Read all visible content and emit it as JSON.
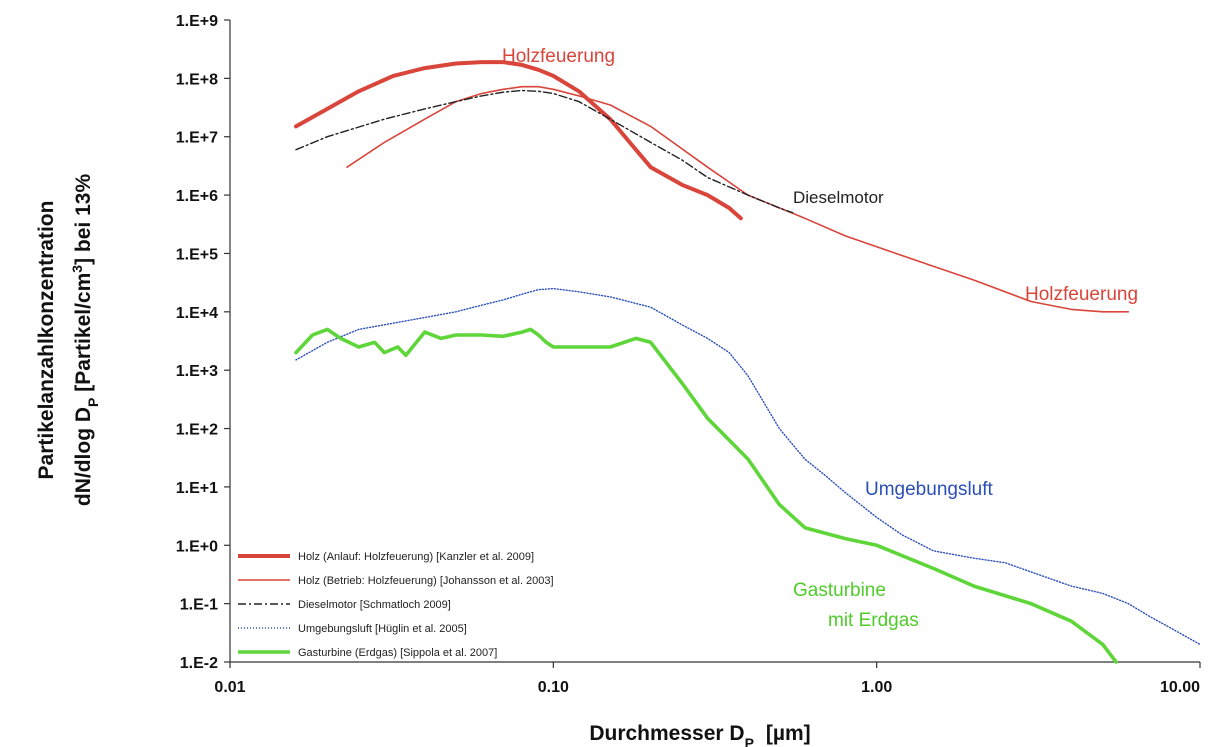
{
  "chart_data": {
    "type": "line",
    "title": "",
    "xlabel": "Durchmesser D",
    "xlabel_sub": "P",
    "xlabel_unit": "[µm]",
    "ylabel_line1": "Partikelanzahlkonzentration",
    "ylabel_line2_a": "dN/dlog D",
    "ylabel_line2_sub": "P",
    "ylabel_line2_b": " [Partikel/cm",
    "ylabel_line2_sup": "3",
    "ylabel_line2_c": "] bei 13%",
    "x_scale": "log",
    "y_scale": "log",
    "xlim": [
      0.01,
      10
    ],
    "ylim": [
      0.01,
      1000000000
    ],
    "grid": false,
    "legend_position": "bottom-left",
    "x_ticks": [
      {
        "value": 0.01,
        "label": "0.01"
      },
      {
        "value": 0.1,
        "label": "0.10"
      },
      {
        "value": 1,
        "label": "1.00"
      },
      {
        "value": 10,
        "label": "10.00"
      }
    ],
    "y_ticks": [
      {
        "value": 1000000000,
        "label": "1.E+9"
      },
      {
        "value": 100000000,
        "label": "1.E+8"
      },
      {
        "value": 10000000,
        "label": "1.E+7"
      },
      {
        "value": 1000000,
        "label": "1.E+6"
      },
      {
        "value": 100000,
        "label": "1.E+5"
      },
      {
        "value": 10000,
        "label": "1.E+4"
      },
      {
        "value": 1000,
        "label": "1.E+3"
      },
      {
        "value": 100,
        "label": "1.E+2"
      },
      {
        "value": 10,
        "label": "1.E+1"
      },
      {
        "value": 1,
        "label": "1.E+0"
      },
      {
        "value": 0.1,
        "label": "1.E-1"
      },
      {
        "value": 0.01,
        "label": "1.E-2"
      }
    ],
    "series": [
      {
        "key": "holz_anlauf",
        "name": "Holz (Anlauf: Holzfeuerung) [Kanzler et al. 2009]",
        "color": "#d9453a",
        "style": "solid",
        "width": 4,
        "x": [
          0.016,
          0.02,
          0.025,
          0.032,
          0.04,
          0.05,
          0.06,
          0.07,
          0.08,
          0.09,
          0.1,
          0.12,
          0.15,
          0.18,
          0.2,
          0.25,
          0.3,
          0.35,
          0.38
        ],
        "y": [
          15000000,
          30000000,
          60000000,
          110000000,
          150000000,
          180000000,
          190000000,
          190000000,
          170000000,
          140000000,
          110000000,
          60000000,
          20000000,
          6000000,
          3000000,
          1500000,
          1000000,
          600000,
          400000
        ]
      },
      {
        "key": "holz_betrieb",
        "name": "Holz (Betrieb: Holzfeuerung) [Johansson et al. 2003]",
        "color": "#d9453a",
        "style": "solid",
        "width": 1.6,
        "x": [
          0.023,
          0.03,
          0.04,
          0.05,
          0.06,
          0.07,
          0.08,
          0.09,
          0.1,
          0.12,
          0.15,
          0.2,
          0.3,
          0.4,
          0.6,
          0.8,
          1,
          1.5,
          2,
          3,
          4,
          5,
          6
        ],
        "y": [
          3000000,
          8000000,
          20000000,
          40000000,
          55000000,
          65000000,
          72000000,
          72000000,
          65000000,
          50000000,
          35000000,
          15000000,
          3000000,
          1000000,
          400000,
          200000,
          130000,
          60000,
          35000,
          15000,
          11000,
          10000,
          10000
        ]
      },
      {
        "key": "diesel",
        "name": "Dieselmotor [Schmatloch 2009]",
        "color": "#222222",
        "style": "dashdot",
        "width": 1.4,
        "x": [
          0.016,
          0.02,
          0.03,
          0.04,
          0.05,
          0.06,
          0.07,
          0.08,
          0.09,
          0.1,
          0.12,
          0.15,
          0.2,
          0.25,
          0.3,
          0.4,
          0.5,
          0.55
        ],
        "y": [
          6000000,
          10000000,
          20000000,
          30000000,
          40000000,
          50000000,
          58000000,
          62000000,
          60000000,
          55000000,
          40000000,
          20000000,
          8000000,
          4000000,
          2000000,
          1000000,
          600000,
          500000
        ]
      },
      {
        "key": "umgebungsluft",
        "name": "Umgebungsluft [Hüglin et al. 2005]",
        "color": "#2b4fb8",
        "style": "dotted",
        "width": 1.4,
        "x": [
          0.016,
          0.02,
          0.025,
          0.03,
          0.04,
          0.05,
          0.06,
          0.07,
          0.08,
          0.09,
          0.1,
          0.12,
          0.15,
          0.2,
          0.25,
          0.3,
          0.35,
          0.4,
          0.5,
          0.6,
          0.7,
          0.8,
          1,
          1.2,
          1.5,
          2,
          2.5,
          3,
          4,
          5,
          6,
          7,
          8,
          10
        ],
        "y": [
          1500,
          3000,
          5000,
          6000,
          8000,
          10000,
          13000,
          16000,
          20000,
          24000,
          25000,
          22000,
          18000,
          12000,
          6000,
          3500,
          2000,
          800,
          100,
          30,
          15,
          8,
          3,
          1.5,
          0.8,
          0.6,
          0.5,
          0.35,
          0.2,
          0.15,
          0.1,
          0.06,
          0.04,
          0.02
        ]
      },
      {
        "key": "gasturbine",
        "name": "Gasturbine (Erdgas) [Sippola et al. 2007]",
        "color": "#5ed63a",
        "style": "solid",
        "width": 3.6,
        "x": [
          0.016,
          0.018,
          0.02,
          0.022,
          0.025,
          0.028,
          0.03,
          0.033,
          0.035,
          0.04,
          0.045,
          0.05,
          0.06,
          0.07,
          0.08,
          0.085,
          0.09,
          0.095,
          0.1,
          0.12,
          0.15,
          0.18,
          0.2,
          0.22,
          0.25,
          0.3,
          0.4,
          0.5,
          0.6,
          0.8,
          1,
          1.5,
          2,
          3,
          4,
          5,
          5.5
        ],
        "y": [
          2000,
          4000,
          5000,
          3500,
          2500,
          3000,
          2000,
          2500,
          1800,
          4500,
          3500,
          4000,
          4000,
          3800,
          4500,
          5000,
          4000,
          3000,
          2500,
          2500,
          2500,
          3500,
          3000,
          1500,
          600,
          150,
          30,
          5,
          2,
          1.3,
          1,
          0.4,
          0.2,
          0.1,
          0.05,
          0.02,
          0.01
        ]
      }
    ],
    "annotations": [
      {
        "key": "holz_top",
        "text": "Holzfeuerung",
        "color": "#d9453a"
      },
      {
        "key": "diesel",
        "text": "Dieselmotor",
        "color": "#222222"
      },
      {
        "key": "holz_right",
        "text": "Holzfeuerung",
        "color": "#d9453a"
      },
      {
        "key": "umgebung",
        "text": "Umgebungsluft",
        "color": "#2b4fb8"
      },
      {
        "key": "gasturbine1",
        "text": "Gasturbine",
        "color": "#4fcc2a"
      },
      {
        "key": "gasturbine2",
        "text": "mit Erdgas",
        "color": "#4fcc2a"
      }
    ]
  }
}
